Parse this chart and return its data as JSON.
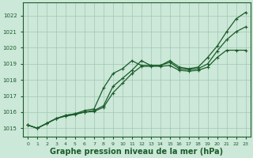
{
  "background_color": "#cce8d8",
  "grid_color": "#a0c8b0",
  "line_color": "#1a5c2a",
  "xlabel": "Graphe pression niveau de la mer (hPa)",
  "xlabel_fontsize": 7,
  "xlim": [
    -0.5,
    23.5
  ],
  "ylim": [
    1014.5,
    1022.8
  ],
  "yticks": [
    1015,
    1016,
    1017,
    1018,
    1019,
    1020,
    1021,
    1022
  ],
  "xticks": [
    0,
    1,
    2,
    3,
    4,
    5,
    6,
    7,
    8,
    9,
    10,
    11,
    12,
    13,
    14,
    15,
    16,
    17,
    18,
    19,
    20,
    21,
    22,
    23
  ],
  "line1_x": [
    0,
    1,
    2,
    3,
    4,
    5,
    6,
    7,
    8,
    9,
    10,
    11,
    12,
    13,
    14,
    15,
    16,
    17,
    18,
    19,
    20,
    21,
    22,
    23
  ],
  "line1_y": [
    1015.2,
    1015.0,
    1015.3,
    1015.6,
    1015.8,
    1015.9,
    1016.1,
    1016.2,
    1017.5,
    1018.4,
    1018.7,
    1019.2,
    1018.9,
    1018.9,
    1018.9,
    1019.2,
    1018.8,
    1018.7,
    1018.8,
    1019.4,
    1020.1,
    1021.0,
    1021.8,
    1022.2
  ],
  "line2_x": [
    0,
    1,
    2,
    3,
    4,
    5,
    6,
    7,
    8,
    9,
    10,
    11,
    12,
    13,
    14,
    15,
    16,
    17,
    18,
    19,
    20,
    21,
    22,
    23
  ],
  "line2_y": [
    1015.2,
    1015.0,
    1015.3,
    1015.6,
    1015.8,
    1015.9,
    1016.0,
    1016.1,
    1016.4,
    1017.6,
    1018.1,
    1018.6,
    1019.2,
    1018.9,
    1018.9,
    1019.1,
    1018.7,
    1018.65,
    1018.7,
    1019.0,
    1019.8,
    1020.5,
    1021.0,
    1021.3
  ],
  "line3_x": [
    0,
    1,
    2,
    3,
    4,
    5,
    6,
    7,
    8,
    9,
    10,
    11,
    12,
    13,
    14,
    15,
    16,
    17,
    18,
    19,
    20,
    21,
    22,
    23
  ],
  "line3_y": [
    1015.2,
    1015.0,
    1015.3,
    1015.6,
    1015.75,
    1015.85,
    1016.0,
    1016.05,
    1016.3,
    1017.2,
    1017.8,
    1018.4,
    1018.85,
    1018.85,
    1018.85,
    1018.9,
    1018.6,
    1018.55,
    1018.6,
    1018.8,
    1019.4,
    1019.85,
    1019.85,
    1019.85
  ]
}
